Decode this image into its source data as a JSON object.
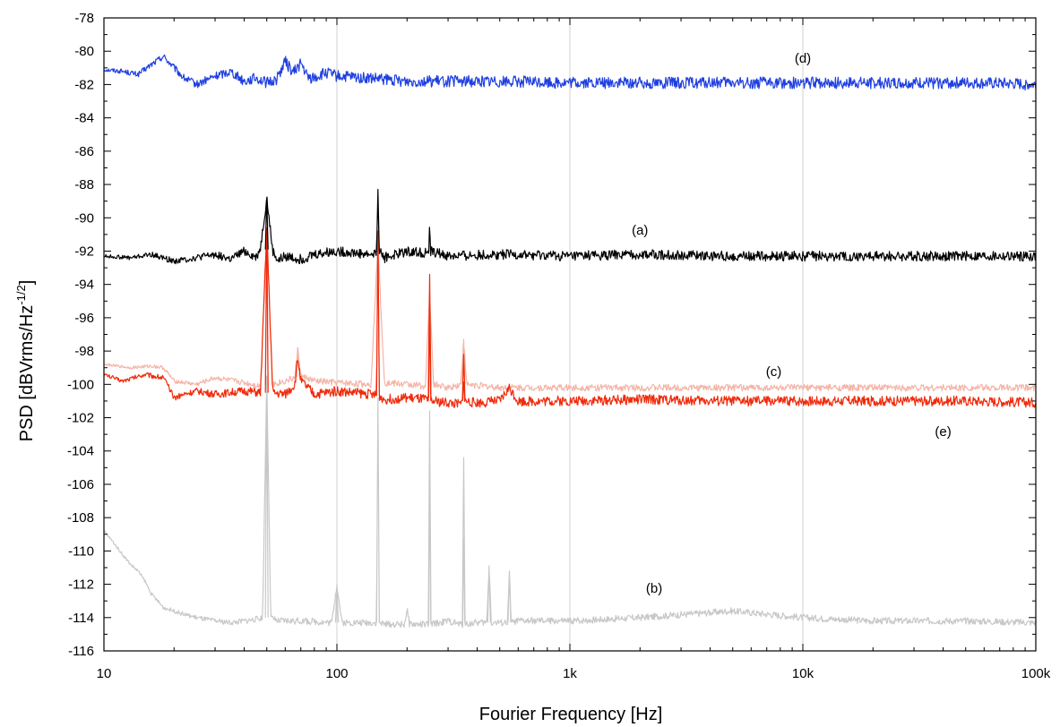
{
  "chart_data": {
    "type": "line",
    "title": "",
    "xlabel": "Fourier Frequency [Hz]",
    "ylabel": "PSD [dBVrms/Hz",
    "ylabel_superscript": "-1/2",
    "ylabel_suffix": "]",
    "x_scale": "log",
    "xlim": [
      10,
      100000
    ],
    "ylim": [
      -116,
      -78
    ],
    "grid": true,
    "x_ticks": [
      10,
      100,
      1000,
      10000,
      100000
    ],
    "x_tick_labels": [
      "10",
      "100",
      "1k",
      "10k",
      "100k"
    ],
    "y_ticks": [
      -78,
      -80,
      -82,
      -84,
      -86,
      -88,
      -90,
      -92,
      -94,
      -96,
      -98,
      -100,
      -102,
      -104,
      -106,
      -108,
      -110,
      -112,
      -114,
      -116
    ],
    "y_tick_labels": [
      "-78",
      "-80",
      "-82",
      "-84",
      "-86",
      "-88",
      "-90",
      "-92",
      "-94",
      "-96",
      "-98",
      "-100",
      "-102",
      "-104",
      "-106",
      "-108",
      "-110",
      "-112",
      "-114",
      "-116"
    ],
    "series": [
      {
        "label": "(d)",
        "color": "#1f3fe0",
        "noise": 0.35,
        "x": [
          10,
          12,
          14,
          16,
          18,
          20,
          22,
          25,
          30,
          35,
          40,
          45,
          50,
          55,
          60,
          65,
          70,
          75,
          80,
          90,
          100,
          200,
          500,
          1000,
          2000,
          5000,
          10000,
          20000,
          50000,
          100000
        ],
        "y": [
          -81.1,
          -81.2,
          -81.4,
          -80.8,
          -80.3,
          -81.0,
          -81.6,
          -82.0,
          -81.5,
          -81.2,
          -81.8,
          -81.6,
          -81.9,
          -81.7,
          -80.6,
          -81.3,
          -80.7,
          -81.6,
          -81.6,
          -81.3,
          -81.5,
          -81.8,
          -81.8,
          -81.9,
          -81.9,
          -81.9,
          -81.9,
          -81.9,
          -81.9,
          -82.0
        ]
      },
      {
        "label": "(a)",
        "color": "#000000",
        "noise": 0.3,
        "x": [
          10,
          13,
          16,
          20,
          25,
          30,
          35,
          40,
          45,
          47,
          50,
          53,
          56,
          60,
          70,
          80,
          100,
          140,
          148,
          150,
          152,
          160,
          200,
          240,
          248,
          250,
          252,
          300,
          500,
          1000,
          2000,
          5000,
          10000,
          20000,
          50000,
          100000
        ],
        "y": [
          -92.3,
          -92.4,
          -92.2,
          -92.6,
          -92.4,
          -92.2,
          -92.5,
          -92.0,
          -92.4,
          -91.8,
          -88.8,
          -92.0,
          -92.6,
          -92.3,
          -92.5,
          -92.2,
          -92.0,
          -92.2,
          -92.1,
          -88.3,
          -92.0,
          -92.4,
          -92.0,
          -92.1,
          -92.0,
          -90.5,
          -92.0,
          -92.3,
          -92.2,
          -92.3,
          -92.2,
          -92.3,
          -92.3,
          -92.3,
          -92.3,
          -92.3
        ]
      },
      {
        "label": "(c)",
        "color": "#f4b5a8",
        "noise": 0.2,
        "x": [
          10,
          13,
          16,
          18,
          20,
          25,
          30,
          40,
          47,
          50,
          53,
          60,
          66,
          68,
          70,
          80,
          100,
          140,
          150,
          160,
          200,
          240,
          250,
          260,
          300,
          340,
          350,
          360,
          500,
          1000,
          2000,
          5000,
          10000,
          20000,
          50000,
          100000
        ],
        "y": [
          -98.8,
          -99.0,
          -98.9,
          -99.0,
          -99.8,
          -100.0,
          -99.6,
          -99.9,
          -100.1,
          -90.8,
          -100.0,
          -99.8,
          -99.6,
          -97.8,
          -99.5,
          -99.8,
          -99.9,
          -100.0,
          -91.5,
          -99.9,
          -100.0,
          -100.1,
          -94.5,
          -100.0,
          -100.2,
          -100.0,
          -97.3,
          -100.0,
          -100.2,
          -100.2,
          -100.2,
          -100.2,
          -100.2,
          -100.2,
          -100.2,
          -100.2
        ]
      },
      {
        "label": "(e)",
        "color": "#f02a0a",
        "noise": 0.3,
        "x": [
          10,
          12,
          15,
          18,
          20,
          22,
          25,
          30,
          40,
          47,
          50,
          53,
          60,
          66,
          68,
          70,
          80,
          100,
          140,
          148,
          150,
          152,
          160,
          200,
          240,
          248,
          250,
          252,
          300,
          340,
          348,
          350,
          352,
          400,
          500,
          550,
          600,
          1000,
          2000,
          5000,
          10000,
          20000,
          50000,
          100000
        ],
        "y": [
          -99.4,
          -99.8,
          -99.4,
          -99.6,
          -100.8,
          -100.6,
          -100.4,
          -100.6,
          -100.4,
          -100.5,
          -90.6,
          -100.5,
          -100.6,
          -100.0,
          -98.4,
          -99.8,
          -100.6,
          -100.4,
          -100.6,
          -100.7,
          -90.8,
          -100.7,
          -100.9,
          -100.8,
          -100.9,
          -101.0,
          -93.4,
          -101.0,
          -101.1,
          -101.2,
          -101.0,
          -98.2,
          -101.0,
          -101.1,
          -101.0,
          -100.2,
          -101.0,
          -101.0,
          -100.9,
          -101.0,
          -101.0,
          -101.0,
          -101.0,
          -101.1
        ]
      },
      {
        "label": "(b)",
        "color": "#c8c8c8",
        "noise": 0.2,
        "x": [
          10,
          11,
          12,
          13,
          14,
          15,
          16,
          17,
          18,
          20,
          22,
          25,
          30,
          35,
          40,
          45,
          48,
          50,
          52,
          55,
          70,
          95,
          100,
          105,
          140,
          148,
          150,
          152,
          160,
          195,
          200,
          205,
          240,
          248,
          250,
          252,
          300,
          340,
          348,
          350,
          352,
          400,
          440,
          450,
          460,
          500,
          540,
          550,
          560,
          600,
          1000,
          2000,
          5000,
          10000,
          20000,
          50000,
          100000
        ],
        "y": [
          -108.8,
          -109.5,
          -110.2,
          -110.8,
          -111.2,
          -111.8,
          -112.6,
          -113.0,
          -113.4,
          -113.6,
          -113.8,
          -114.0,
          -114.2,
          -114.3,
          -114.2,
          -114.1,
          -114.0,
          -99.5,
          -114.0,
          -114.2,
          -114.2,
          -114.3,
          -112.0,
          -114.3,
          -114.3,
          -114.3,
          -100.8,
          -114.3,
          -114.4,
          -114.4,
          -113.5,
          -114.4,
          -114.4,
          -114.4,
          -101.6,
          -114.4,
          -114.2,
          -114.4,
          -114.4,
          -104.4,
          -114.4,
          -114.3,
          -114.3,
          -110.9,
          -114.3,
          -114.3,
          -114.3,
          -111.2,
          -114.3,
          -114.2,
          -114.2,
          -114.0,
          -113.6,
          -114.0,
          -114.2,
          -114.2,
          -114.3
        ]
      }
    ],
    "annotations": [
      {
        "text": "(d)",
        "x": 10000,
        "y": -80.7
      },
      {
        "text": "(a)",
        "x": 2000,
        "y": -91.0
      },
      {
        "text": "(c)",
        "x": 7500,
        "y": -99.5
      },
      {
        "text": "(e)",
        "x": 40000,
        "y": -103.1
      },
      {
        "text": "(b)",
        "x": 2300,
        "y": -112.5
      }
    ]
  }
}
